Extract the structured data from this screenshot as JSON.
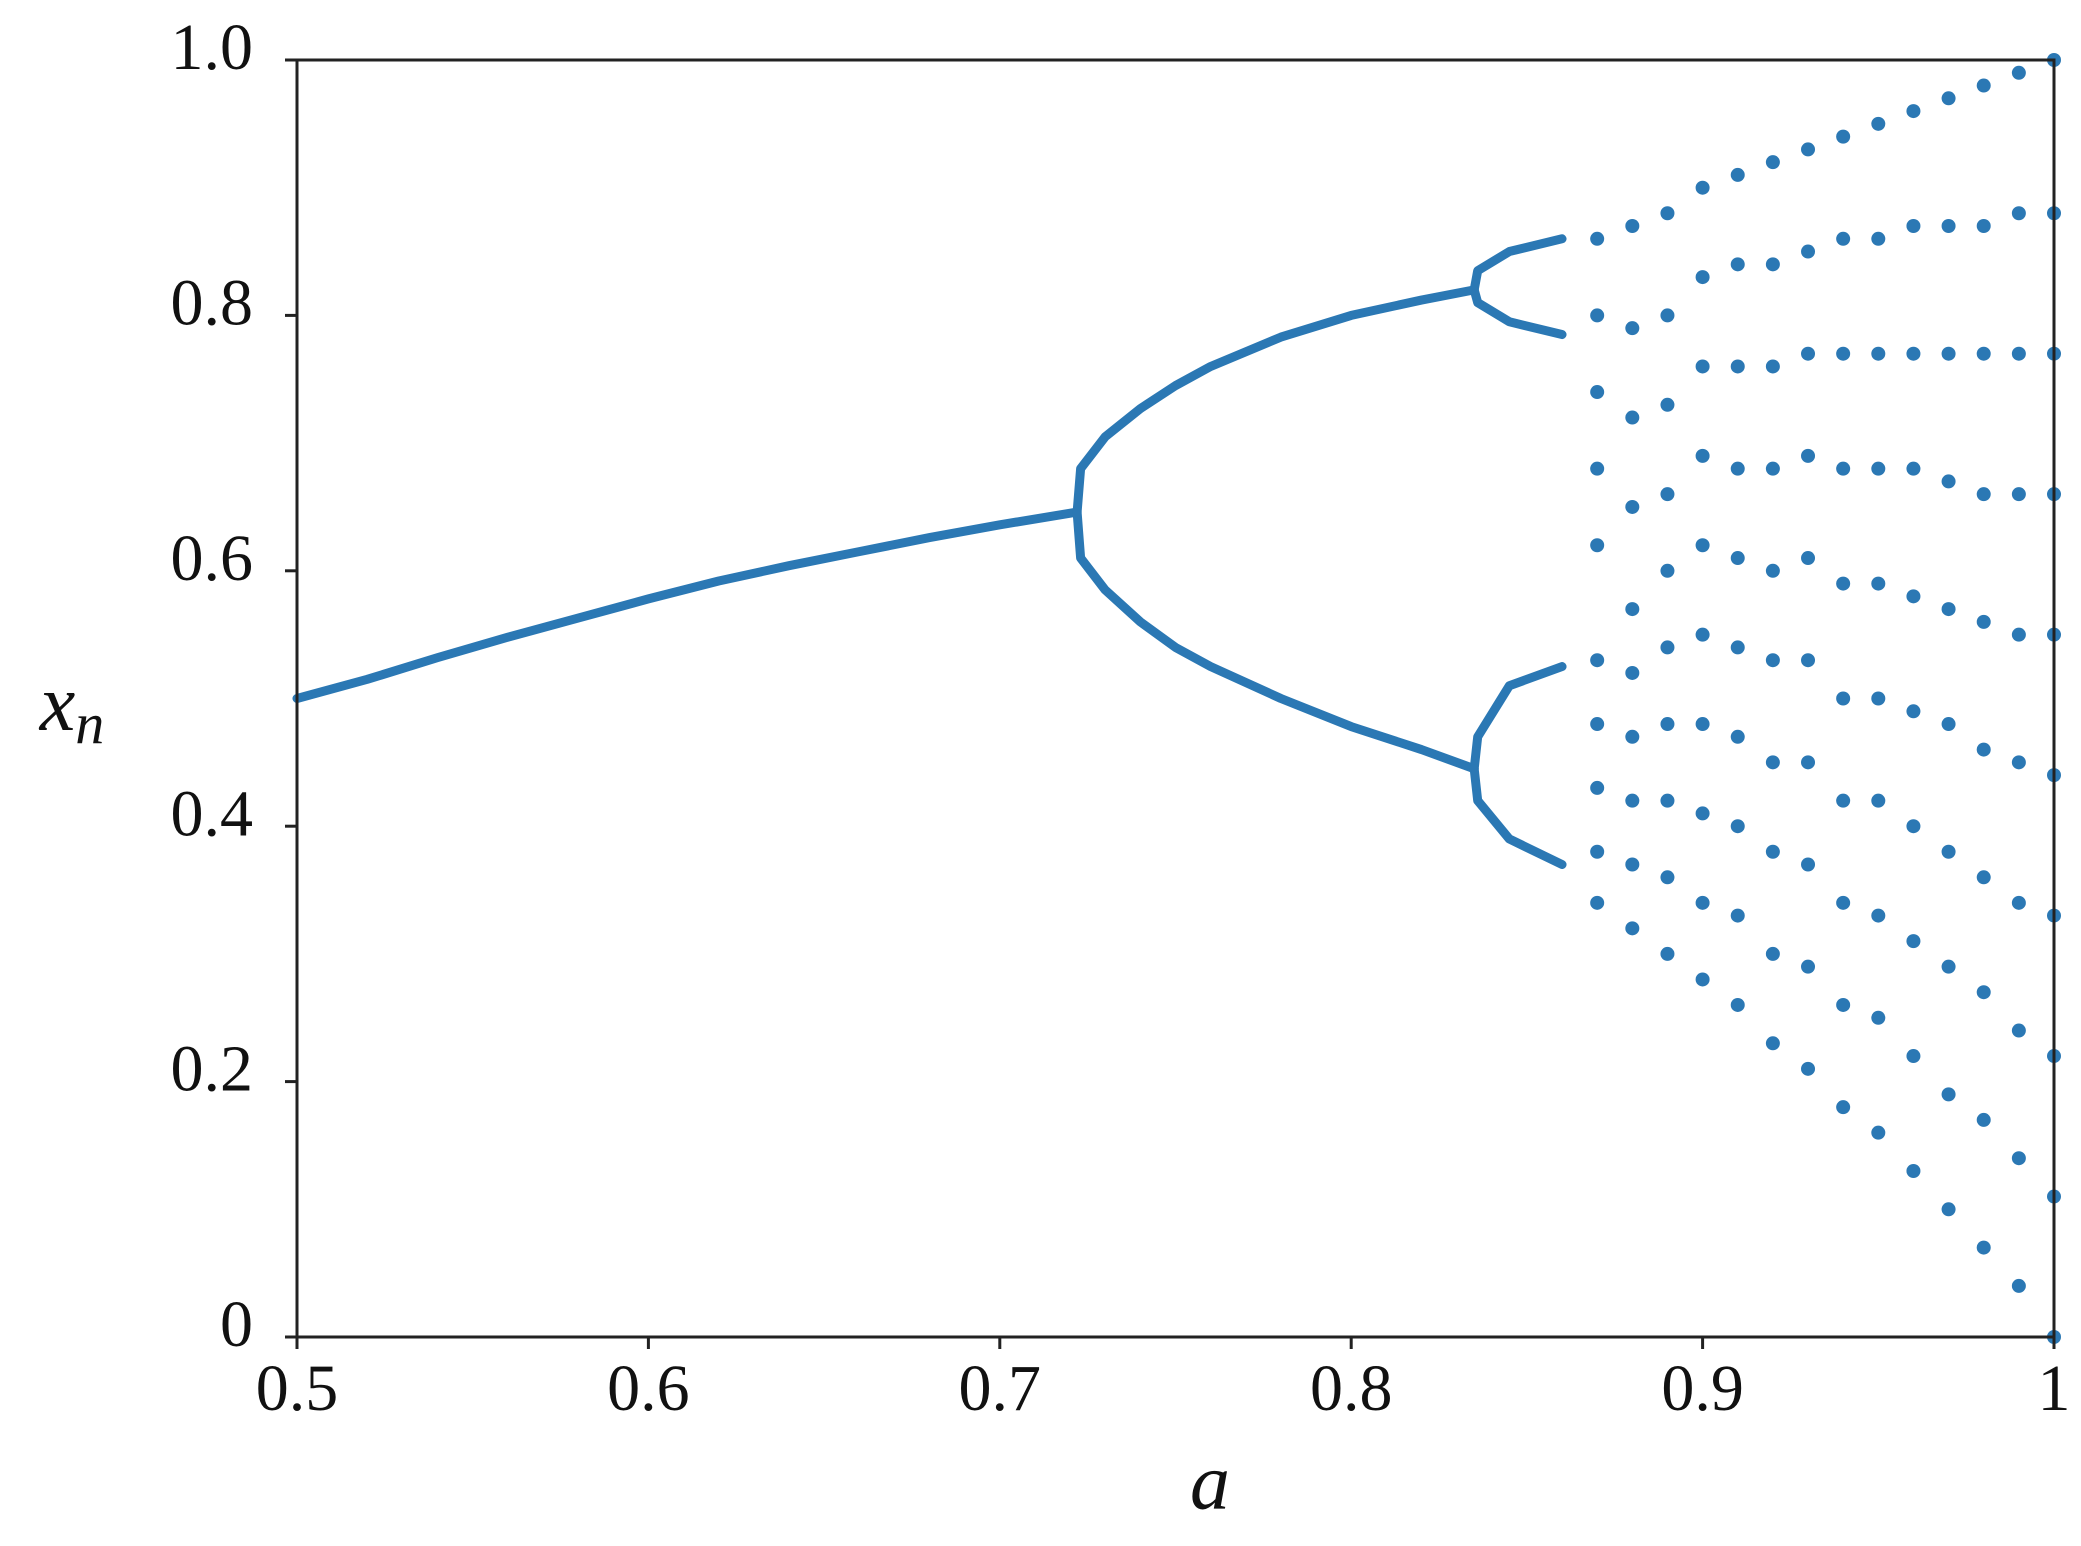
{
  "chart_data": {
    "type": "scatter",
    "color": "#2b78b4",
    "xlabel": "a",
    "ylabel": {
      "base": "x",
      "sub": "n"
    },
    "xlim": [
      0.5,
      1
    ],
    "ylim": [
      0,
      1
    ],
    "xticks": [
      0.5,
      0.6,
      0.7,
      0.8,
      0.9,
      1
    ],
    "yticks": [
      0,
      0.2,
      0.4,
      0.6,
      0.8,
      {
        "value": 1,
        "label": "1.0"
      }
    ],
    "series": [
      {
        "mode": "line",
        "x": [
          0.5,
          0.52,
          0.54,
          0.56,
          0.58,
          0.6,
          0.62,
          0.64,
          0.66,
          0.68,
          0.7,
          0.722
        ],
        "values": [
          0.5,
          0.515,
          0.532,
          0.548,
          0.563,
          0.578,
          0.592,
          0.604,
          0.615,
          0.626,
          0.636,
          0.646
        ]
      },
      {
        "mode": "line",
        "x": [
          0.722,
          0.723,
          0.73,
          0.74,
          0.75,
          0.76,
          0.78,
          0.8,
          0.82,
          0.835
        ],
        "values": [
          0.646,
          0.68,
          0.705,
          0.727,
          0.745,
          0.76,
          0.783,
          0.8,
          0.812,
          0.82
        ]
      },
      {
        "mode": "line",
        "x": [
          0.722,
          0.723,
          0.73,
          0.74,
          0.75,
          0.76,
          0.78,
          0.8,
          0.82,
          0.835
        ],
        "values": [
          0.646,
          0.61,
          0.585,
          0.56,
          0.54,
          0.525,
          0.5,
          0.478,
          0.46,
          0.445
        ]
      },
      {
        "mode": "line",
        "x": [
          0.835,
          0.836,
          0.845,
          0.86
        ],
        "values": [
          0.82,
          0.835,
          0.85,
          0.86
        ]
      },
      {
        "mode": "line",
        "x": [
          0.835,
          0.836,
          0.845,
          0.86
        ],
        "values": [
          0.82,
          0.81,
          0.795,
          0.785
        ]
      },
      {
        "mode": "line",
        "x": [
          0.835,
          0.836,
          0.845,
          0.86
        ],
        "values": [
          0.445,
          0.47,
          0.51,
          0.525
        ]
      },
      {
        "mode": "line",
        "x": [
          0.835,
          0.836,
          0.845,
          0.86
        ],
        "values": [
          0.445,
          0.42,
          0.39,
          0.37
        ]
      },
      {
        "mode": "points",
        "x": [
          0.87,
          0.87,
          0.87,
          0.87,
          0.87,
          0.87,
          0.87,
          0.87,
          0.87,
          0.87,
          0.88,
          0.88,
          0.88,
          0.88,
          0.88,
          0.88,
          0.88,
          0.88,
          0.88,
          0.88,
          0.89,
          0.89,
          0.89,
          0.89,
          0.89,
          0.89,
          0.89,
          0.89,
          0.89,
          0.89,
          0.9,
          0.9,
          0.9,
          0.9,
          0.9,
          0.9,
          0.9,
          0.9,
          0.9,
          0.9,
          0.91,
          0.91,
          0.91,
          0.91,
          0.91,
          0.91,
          0.91,
          0.91,
          0.91,
          0.91,
          0.92,
          0.92,
          0.92,
          0.92,
          0.92,
          0.92,
          0.92,
          0.92,
          0.92,
          0.92,
          0.93,
          0.93,
          0.93,
          0.93,
          0.93,
          0.93,
          0.93,
          0.93,
          0.93,
          0.93,
          0.94,
          0.94,
          0.94,
          0.94,
          0.94,
          0.94,
          0.94,
          0.94,
          0.94,
          0.94,
          0.95,
          0.95,
          0.95,
          0.95,
          0.95,
          0.95,
          0.95,
          0.95,
          0.95,
          0.95,
          0.96,
          0.96,
          0.96,
          0.96,
          0.96,
          0.96,
          0.96,
          0.96,
          0.96,
          0.96,
          0.97,
          0.97,
          0.97,
          0.97,
          0.97,
          0.97,
          0.97,
          0.97,
          0.97,
          0.97,
          0.98,
          0.98,
          0.98,
          0.98,
          0.98,
          0.98,
          0.98,
          0.98,
          0.98,
          0.98,
          0.99,
          0.99,
          0.99,
          0.99,
          0.99,
          0.99,
          0.99,
          0.99,
          0.99,
          0.99,
          1,
          1,
          1,
          1,
          1,
          1,
          1,
          1,
          1,
          1
        ],
        "values": [
          0.34,
          0.38,
          0.43,
          0.48,
          0.53,
          0.62,
          0.68,
          0.74,
          0.8,
          0.86,
          0.32,
          0.37,
          0.42,
          0.47,
          0.52,
          0.57,
          0.65,
          0.72,
          0.79,
          0.87,
          0.3,
          0.36,
          0.42,
          0.48,
          0.54,
          0.6,
          0.66,
          0.73,
          0.8,
          0.88,
          0.28,
          0.34,
          0.41,
          0.48,
          0.55,
          0.62,
          0.69,
          0.76,
          0.83,
          0.9,
          0.26,
          0.33,
          0.4,
          0.47,
          0.54,
          0.61,
          0.68,
          0.76,
          0.84,
          0.91,
          0.23,
          0.3,
          0.38,
          0.45,
          0.53,
          0.6,
          0.68,
          0.76,
          0.84,
          0.92,
          0.21,
          0.29,
          0.37,
          0.45,
          0.53,
          0.61,
          0.69,
          0.77,
          0.85,
          0.93,
          0.18,
          0.26,
          0.34,
          0.42,
          0.5,
          0.59,
          0.68,
          0.77,
          0.86,
          0.94,
          0.16,
          0.25,
          0.33,
          0.42,
          0.5,
          0.59,
          0.68,
          0.77,
          0.86,
          0.95,
          0.13,
          0.22,
          0.31,
          0.4,
          0.49,
          0.58,
          0.68,
          0.77,
          0.87,
          0.96,
          0.1,
          0.19,
          0.29,
          0.38,
          0.48,
          0.57,
          0.67,
          0.77,
          0.87,
          0.97,
          0.07,
          0.17,
          0.27,
          0.36,
          0.46,
          0.56,
          0.66,
          0.77,
          0.87,
          0.98,
          0.04,
          0.14,
          0.24,
          0.34,
          0.45,
          0.55,
          0.66,
          0.77,
          0.88,
          0.99,
          0,
          0.11,
          0.22,
          0.33,
          0.44,
          0.55,
          0.66,
          0.77,
          0.88,
          1
        ]
      }
    ]
  }
}
